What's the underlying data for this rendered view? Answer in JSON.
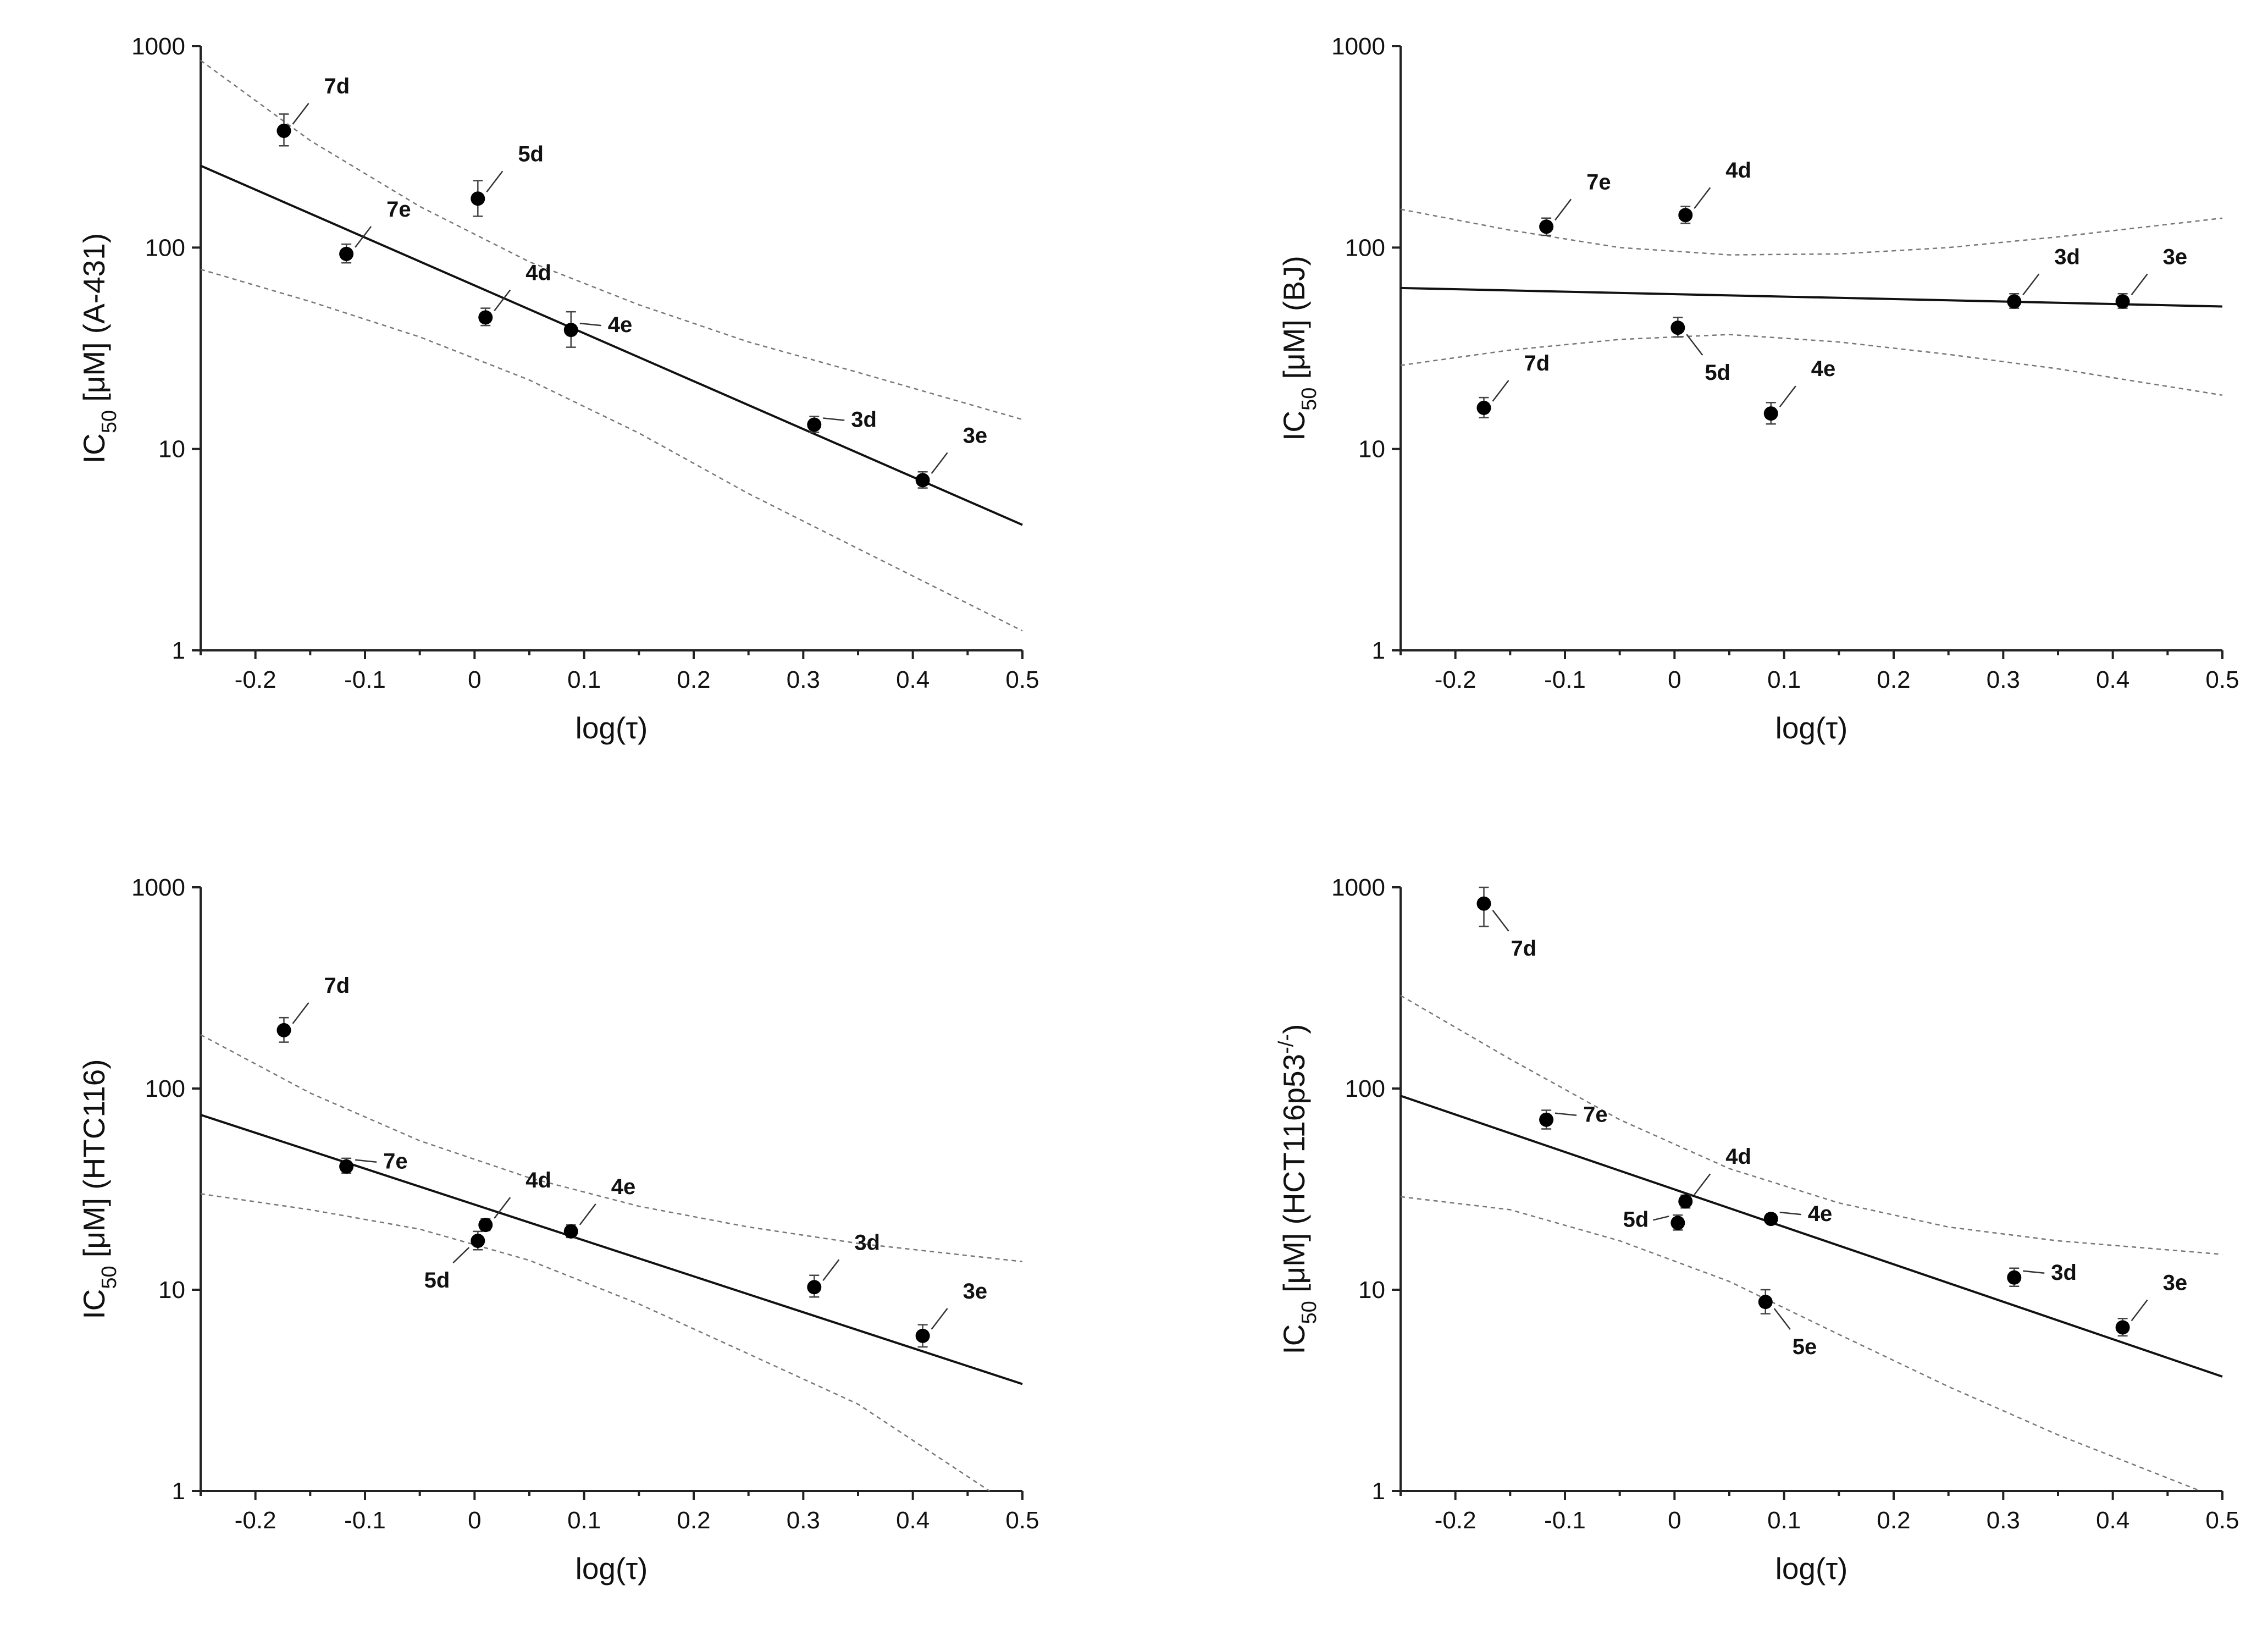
{
  "chart_data": [
    {
      "type": "scatter",
      "xlabel": "log(τ)",
      "ylabel": "IC50 [μM] (A-431)",
      "ylabel_main": "IC",
      "ylabel_sub": "50",
      "ylabel_rest": " [μM] (A-431)",
      "ylabel_sup": "",
      "ylabel_tail": "",
      "xlim": [
        -0.25,
        0.5
      ],
      "ylim": [
        1,
        1000
      ],
      "yscale": "log",
      "xticks": [
        "-0.2",
        "-0.1",
        "0",
        "0.1",
        "0.2",
        "0.3",
        "0.4",
        "0.5"
      ],
      "yticks": [
        "1",
        "10",
        "100",
        "1000"
      ],
      "points": [
        {
          "label": "7d",
          "x": -0.174,
          "y": 380,
          "err": [
            320,
            460
          ],
          "label_dir": "ur"
        },
        {
          "label": "7e",
          "x": -0.117,
          "y": 93,
          "err": [
            84,
            104
          ],
          "label_dir": "ur"
        },
        {
          "label": "5d",
          "x": 0.003,
          "y": 175,
          "err": [
            143,
            215
          ],
          "label_dir": "ur"
        },
        {
          "label": "4d",
          "x": 0.01,
          "y": 45,
          "err": [
            41,
            50
          ],
          "label_dir": "ur"
        },
        {
          "label": "4e",
          "x": 0.088,
          "y": 39,
          "err": [
            32,
            48
          ],
          "label_dir": "r"
        },
        {
          "label": "3d",
          "x": 0.31,
          "y": 13.2,
          "err": [
            12.1,
            14.5
          ],
          "label_dir": "r"
        },
        {
          "label": "3e",
          "x": 0.409,
          "y": 7,
          "err": [
            6.4,
            7.7
          ],
          "label_dir": "ur"
        }
      ],
      "fit": [
        [
          -0.25,
          255
        ],
        [
          0.5,
          4.2
        ]
      ],
      "ci_upper": [
        [
          -0.25,
          850
        ],
        [
          -0.15,
          340
        ],
        [
          -0.05,
          160
        ],
        [
          0.05,
          85
        ],
        [
          0.15,
          52
        ],
        [
          0.25,
          34
        ],
        [
          0.35,
          24
        ],
        [
          0.5,
          14
        ]
      ],
      "ci_lower": [
        [
          -0.25,
          78
        ],
        [
          -0.15,
          54
        ],
        [
          -0.05,
          36
        ],
        [
          0.05,
          22
        ],
        [
          0.15,
          12
        ],
        [
          0.25,
          6
        ],
        [
          0.35,
          3.2
        ],
        [
          0.5,
          1.25
        ]
      ]
    },
    {
      "type": "scatter",
      "xlabel": "log(τ)",
      "ylabel": "IC50 [μM] (BJ)",
      "ylabel_main": "IC",
      "ylabel_sub": "50",
      "ylabel_rest": " [μM] (BJ)",
      "ylabel_sup": "",
      "ylabel_tail": "",
      "xlim": [
        -0.25,
        0.5
      ],
      "ylim": [
        1,
        1000
      ],
      "yscale": "log",
      "xticks": [
        "-0.2",
        "-0.1",
        "0",
        "0.1",
        "0.2",
        "0.3",
        "0.4",
        "0.5"
      ],
      "yticks": [
        "1",
        "10",
        "100",
        "1000"
      ],
      "points": [
        {
          "label": "7d",
          "x": -0.174,
          "y": 16,
          "err": [
            14.3,
            18
          ],
          "label_dir": "ur"
        },
        {
          "label": "7e",
          "x": -0.117,
          "y": 127,
          "err": [
            115,
            140
          ],
          "label_dir": "ur"
        },
        {
          "label": "5d",
          "x": 0.003,
          "y": 40,
          "err": [
            36,
            45
          ],
          "label_dir": "dr"
        },
        {
          "label": "4d",
          "x": 0.01,
          "y": 145,
          "err": [
            132,
            160
          ],
          "label_dir": "ur"
        },
        {
          "label": "4e",
          "x": 0.088,
          "y": 15,
          "err": [
            13.3,
            17
          ],
          "label_dir": "ur"
        },
        {
          "label": "3d",
          "x": 0.31,
          "y": 54,
          "err": [
            50,
            59
          ],
          "label_dir": "ur"
        },
        {
          "label": "3e",
          "x": 0.409,
          "y": 54,
          "err": [
            50,
            59
          ],
          "label_dir": "ur"
        }
      ],
      "fit": [
        [
          -0.25,
          63
        ],
        [
          0.5,
          51
        ]
      ],
      "ci_upper": [
        [
          -0.25,
          155
        ],
        [
          -0.15,
          122
        ],
        [
          -0.05,
          100
        ],
        [
          0.05,
          92
        ],
        [
          0.15,
          93
        ],
        [
          0.25,
          100
        ],
        [
          0.35,
          113
        ],
        [
          0.5,
          140
        ]
      ],
      "ci_lower": [
        [
          -0.25,
          26
        ],
        [
          -0.15,
          31
        ],
        [
          -0.05,
          35
        ],
        [
          0.05,
          37
        ],
        [
          0.15,
          34
        ],
        [
          0.25,
          29.5
        ],
        [
          0.35,
          25
        ],
        [
          0.5,
          18.5
        ]
      ]
    },
    {
      "type": "scatter",
      "xlabel": "log(τ)",
      "ylabel": "IC50 [μM] (HTC116)",
      "ylabel_main": "IC",
      "ylabel_sub": "50",
      "ylabel_rest": " [μM] (HTC116)",
      "ylabel_sup": "",
      "ylabel_tail": "",
      "xlim": [
        -0.25,
        0.5
      ],
      "ylim": [
        1,
        1000
      ],
      "yscale": "log",
      "xticks": [
        "-0.2",
        "-0.1",
        "0",
        "0.1",
        "0.2",
        "0.3",
        "0.4",
        "0.5"
      ],
      "yticks": [
        "1",
        "10",
        "100",
        "1000"
      ],
      "points": [
        {
          "label": "7d",
          "x": -0.174,
          "y": 195,
          "err": [
            170,
            225
          ],
          "label_dir": "ur"
        },
        {
          "label": "7e",
          "x": -0.117,
          "y": 41,
          "err": [
            38,
            45
          ],
          "label_dir": "r"
        },
        {
          "label": "5d",
          "x": 0.003,
          "y": 17.5,
          "err": [
            15.8,
            19.5
          ],
          "label_dir": "dl"
        },
        {
          "label": "4d",
          "x": 0.01,
          "y": 21,
          "err": [
            19.7,
            22.5
          ],
          "label_dir": "ur"
        },
        {
          "label": "4e",
          "x": 0.088,
          "y": 19.5,
          "err": [
            18.2,
            21
          ],
          "label_dir": "ur"
        },
        {
          "label": "3d",
          "x": 0.31,
          "y": 10.3,
          "err": [
            9.2,
            11.8
          ],
          "label_dir": "ur"
        },
        {
          "label": "3e",
          "x": 0.409,
          "y": 5.9,
          "err": [
            5.2,
            6.7
          ],
          "label_dir": "ur"
        }
      ],
      "fit": [
        [
          -0.25,
          74
        ],
        [
          0.5,
          3.4
        ]
      ],
      "ci_upper": [
        [
          -0.25,
          185
        ],
        [
          -0.15,
          95
        ],
        [
          -0.05,
          55
        ],
        [
          0.05,
          36
        ],
        [
          0.15,
          26
        ],
        [
          0.25,
          20.5
        ],
        [
          0.35,
          17
        ],
        [
          0.5,
          13.8
        ]
      ],
      "ci_lower": [
        [
          -0.25,
          30
        ],
        [
          -0.15,
          25
        ],
        [
          -0.05,
          20
        ],
        [
          0.05,
          14
        ],
        [
          0.15,
          8.5
        ],
        [
          0.25,
          4.8
        ],
        [
          0.35,
          2.7
        ],
        [
          0.47,
          1
        ]
      ]
    },
    {
      "type": "scatter",
      "xlabel": "log(τ)",
      "ylabel": "IC50 [μM] (HCT116p53-/-)",
      "ylabel_main": "IC",
      "ylabel_sub": "50",
      "ylabel_rest": " [μM] (HCT116p53",
      "ylabel_sup": "-/-",
      "ylabel_tail": ")",
      "xlim": [
        -0.25,
        0.5
      ],
      "ylim": [
        1,
        1000
      ],
      "yscale": "log",
      "xticks": [
        "-0.2",
        "-0.1",
        "0",
        "0.1",
        "0.2",
        "0.3",
        "0.4",
        "0.5"
      ],
      "yticks": [
        "1",
        "10",
        "100",
        "1000"
      ],
      "points": [
        {
          "label": "7d",
          "x": -0.174,
          "y": 830,
          "err": [
            640,
            1000
          ],
          "label_dir": "dr"
        },
        {
          "label": "7e",
          "x": -0.117,
          "y": 70,
          "err": [
            63,
            78
          ],
          "label_dir": "r"
        },
        {
          "label": "5d",
          "x": 0.003,
          "y": 21.5,
          "err": [
            19.8,
            23.5
          ],
          "label_dir": "l"
        },
        {
          "label": "4d",
          "x": 0.01,
          "y": 27.5,
          "err": [
            25.5,
            29.5
          ],
          "label_dir": "ur"
        },
        {
          "label": "4e",
          "x": 0.088,
          "y": 22.5,
          "err": [
            21.3,
            23.8
          ],
          "label_dir": "r"
        },
        {
          "label": "5e",
          "x": 0.083,
          "y": 8.7,
          "err": [
            7.6,
            10
          ],
          "label_dir": "dr"
        },
        {
          "label": "3d",
          "x": 0.31,
          "y": 11.5,
          "err": [
            10.4,
            12.8
          ],
          "label_dir": "r"
        },
        {
          "label": "3e",
          "x": 0.409,
          "y": 6.5,
          "err": [
            5.9,
            7.2
          ],
          "label_dir": "ur"
        }
      ],
      "fit": [
        [
          -0.25,
          92
        ],
        [
          0.5,
          3.7
        ]
      ],
      "ci_upper": [
        [
          -0.25,
          290
        ],
        [
          -0.15,
          140
        ],
        [
          -0.05,
          70
        ],
        [
          0.05,
          40
        ],
        [
          0.15,
          27
        ],
        [
          0.25,
          20.5
        ],
        [
          0.35,
          17.5
        ],
        [
          0.5,
          15
        ]
      ],
      "ci_lower": [
        [
          -0.25,
          29
        ],
        [
          -0.15,
          25
        ],
        [
          -0.05,
          17.5
        ],
        [
          0.05,
          11
        ],
        [
          0.15,
          6
        ],
        [
          0.25,
          3.3
        ],
        [
          0.35,
          1.9
        ],
        [
          0.48,
          1
        ]
      ]
    }
  ]
}
